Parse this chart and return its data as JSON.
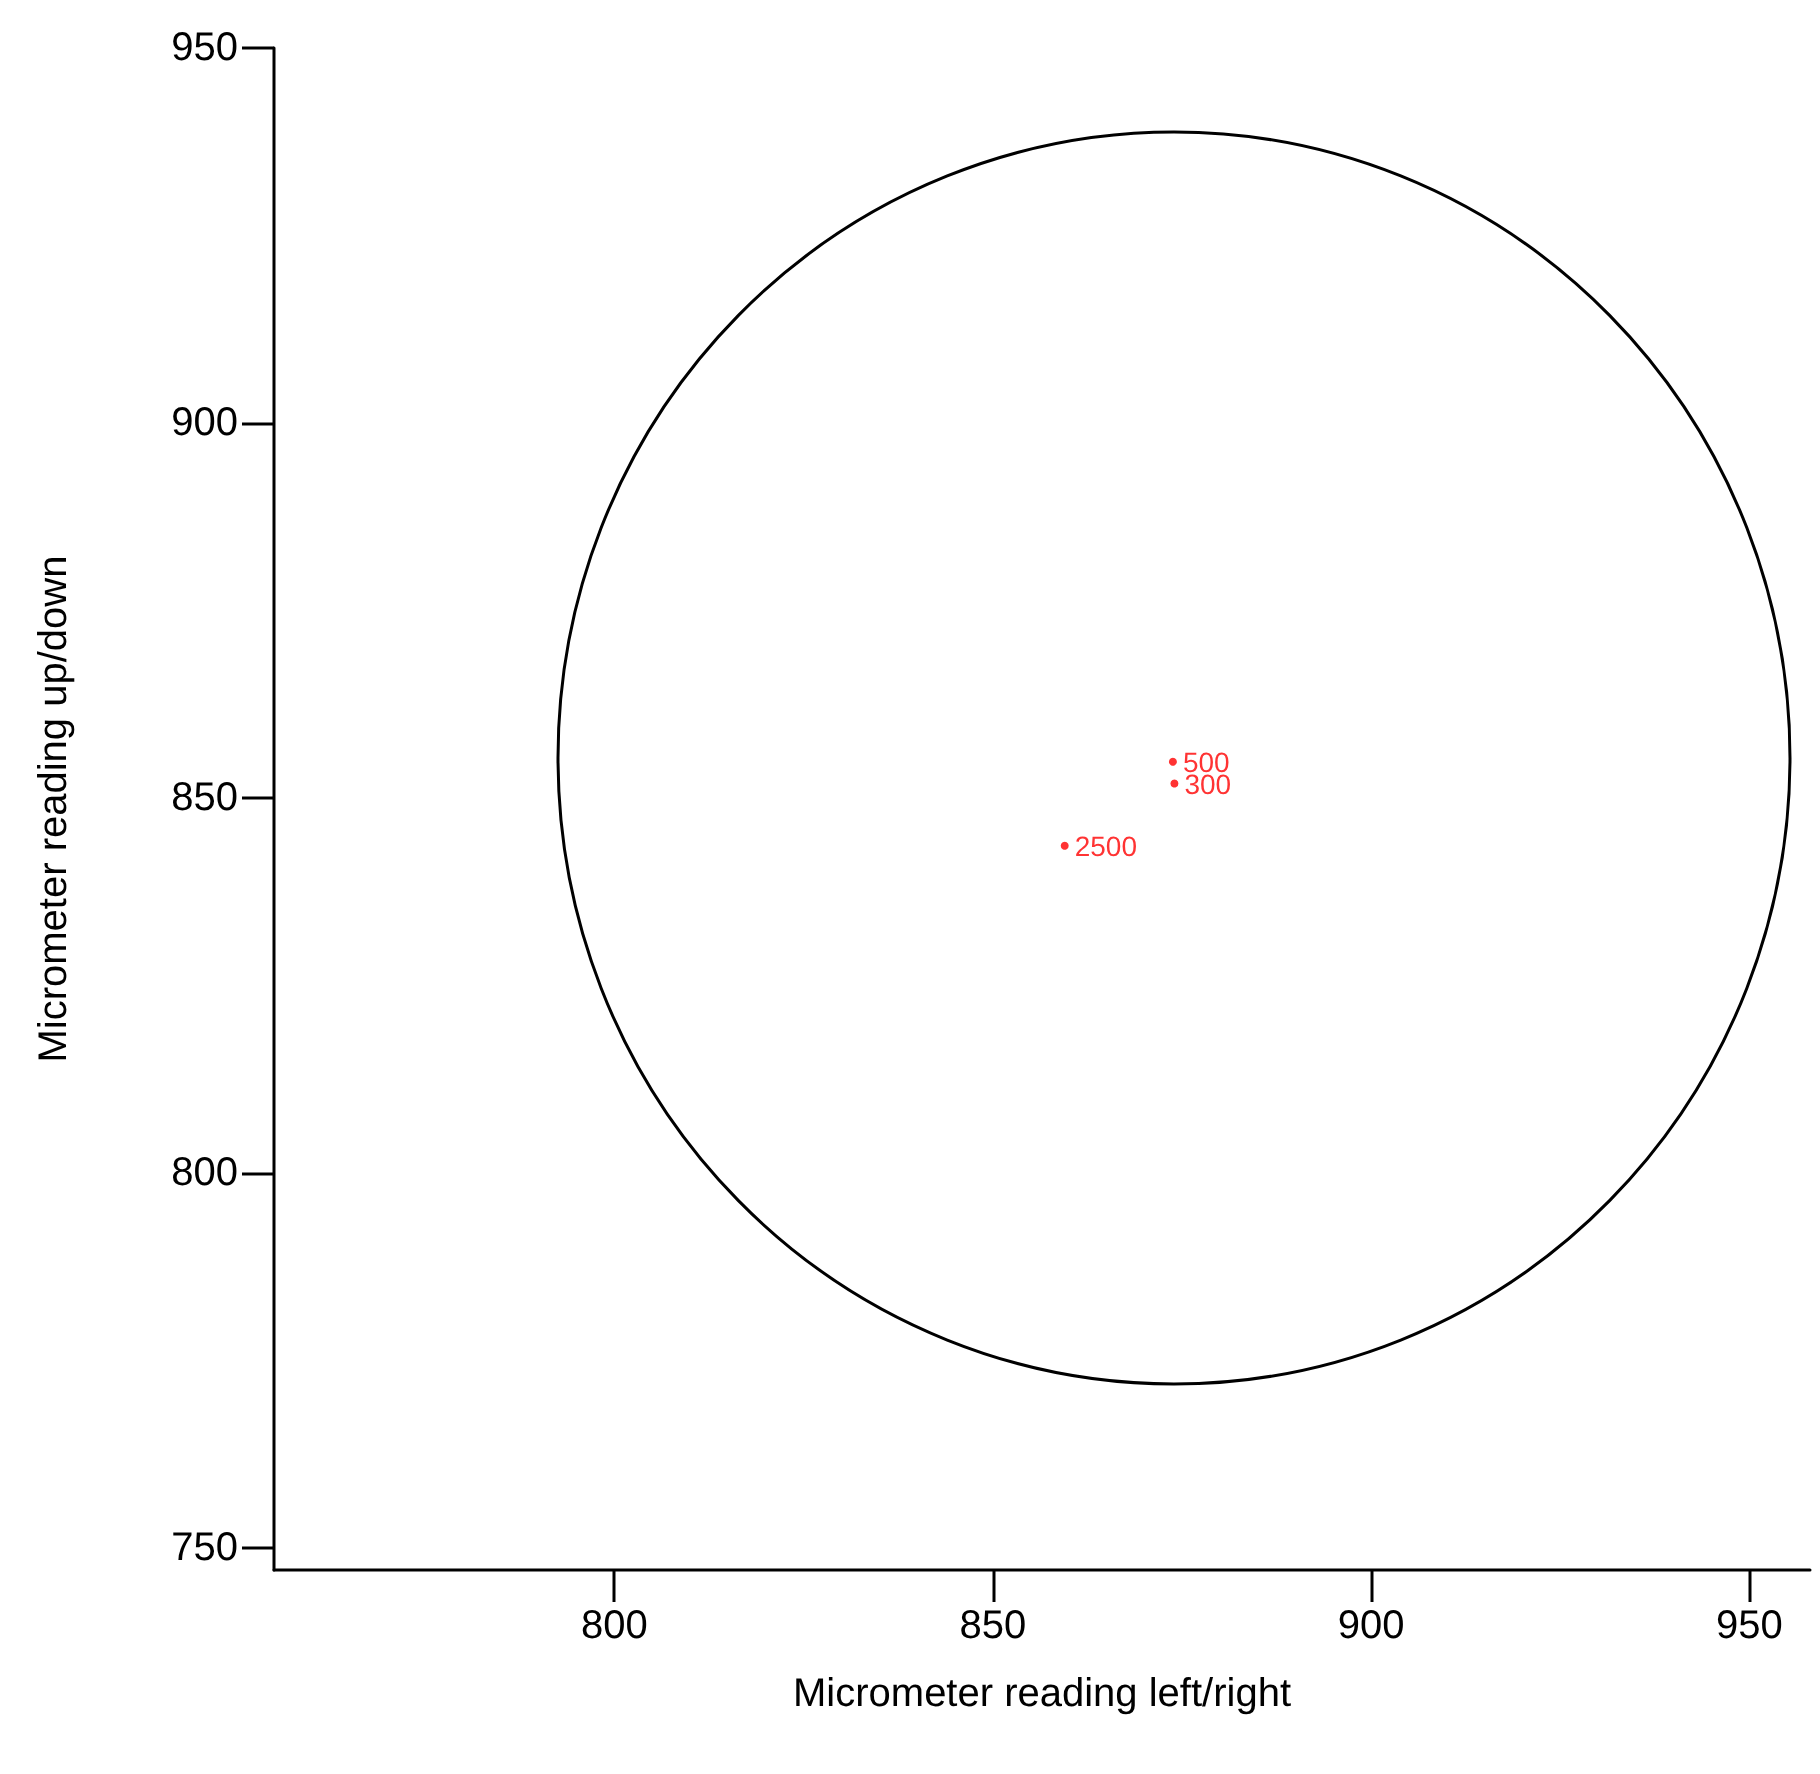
{
  "chart_data": {
    "type": "scatter",
    "xlabel": "Micrometer reading left/right",
    "ylabel": "Micrometer reading up/down",
    "xlim": [
      755,
      958
    ],
    "ylim": [
      747,
      950
    ],
    "xticks": [
      800,
      850,
      900,
      950
    ],
    "yticks": [
      750,
      800,
      850,
      900,
      950
    ],
    "grid": false,
    "legend": false,
    "marker": "circle",
    "series": [
      {
        "name": "500",
        "color": "#ff0000",
        "x": [
          873.8
        ],
        "values": [
          854.8
        ]
      },
      {
        "name": "300",
        "color": "#ff0000",
        "x": [
          874
        ],
        "values": [
          851.9
        ]
      },
      {
        "name": "2500",
        "color": "#ff0000",
        "x": [
          859.5
        ],
        "values": [
          843.6
        ]
      }
    ]
  }
}
